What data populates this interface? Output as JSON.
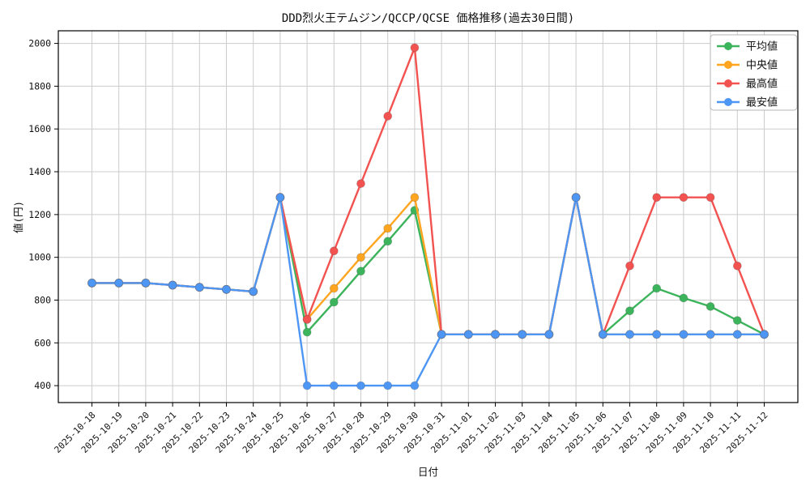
{
  "chart_data": {
    "type": "line",
    "title": "DDD烈火王テムジン/QCCP/QCSE 価格推移(過去30日間)",
    "xlabel": "日付",
    "ylabel": "値(円)",
    "grid": true,
    "legend_position": "upper right",
    "x": [
      "2025-10-18",
      "2025-10-19",
      "2025-10-20",
      "2025-10-21",
      "2025-10-22",
      "2025-10-23",
      "2025-10-24",
      "2025-10-25",
      "2025-10-26",
      "2025-10-27",
      "2025-10-28",
      "2025-10-29",
      "2025-10-30",
      "2025-10-31",
      "2025-11-01",
      "2025-11-02",
      "2025-11-03",
      "2025-11-04",
      "2025-11-05",
      "2025-11-06",
      "2025-11-07",
      "2025-11-08",
      "2025-11-09",
      "2025-11-10",
      "2025-11-11",
      "2025-11-12"
    ],
    "yticks": [
      400,
      600,
      800,
      1000,
      1200,
      1400,
      1600,
      1800,
      2000
    ],
    "ylim": [
      321,
      2059
    ],
    "series": [
      {
        "key": "avg",
        "name": "平均値",
        "color": "#3cb45c",
        "values": [
          880,
          880,
          880,
          870,
          860,
          850,
          840,
          1280,
          650,
          790,
          935,
          1075,
          1220,
          640,
          640,
          640,
          640,
          640,
          1280,
          640,
          750,
          855,
          810,
          770,
          705,
          640
        ]
      },
      {
        "key": "median",
        "name": "中央値",
        "color": "#ffa51f",
        "values": [
          880,
          880,
          880,
          870,
          860,
          850,
          840,
          1280,
          710,
          855,
          1000,
          1135,
          1280,
          640,
          640,
          640,
          640,
          640,
          1280,
          640,
          640,
          640,
          640,
          640,
          640,
          640
        ]
      },
      {
        "key": "max",
        "name": "最高値",
        "color": "#f25250",
        "values": [
          880,
          880,
          880,
          870,
          860,
          850,
          840,
          1280,
          710,
          1030,
          1345,
          1660,
          1980,
          640,
          640,
          640,
          640,
          640,
          1280,
          640,
          960,
          1280,
          1280,
          1280,
          960,
          640
        ]
      },
      {
        "key": "min",
        "name": "最安値",
        "color": "#4e96f3",
        "values": [
          880,
          880,
          880,
          870,
          860,
          850,
          840,
          1280,
          400,
          400,
          400,
          400,
          400,
          640,
          640,
          640,
          640,
          640,
          1280,
          640,
          640,
          640,
          640,
          640,
          640,
          640
        ]
      }
    ],
    "colors": {
      "background": "#ffffff",
      "grid": "#cccccc",
      "axis": "#000000",
      "tick_text": "#111111",
      "legend_border": "#b5b5b5",
      "legend_background": "#ffffff"
    }
  }
}
